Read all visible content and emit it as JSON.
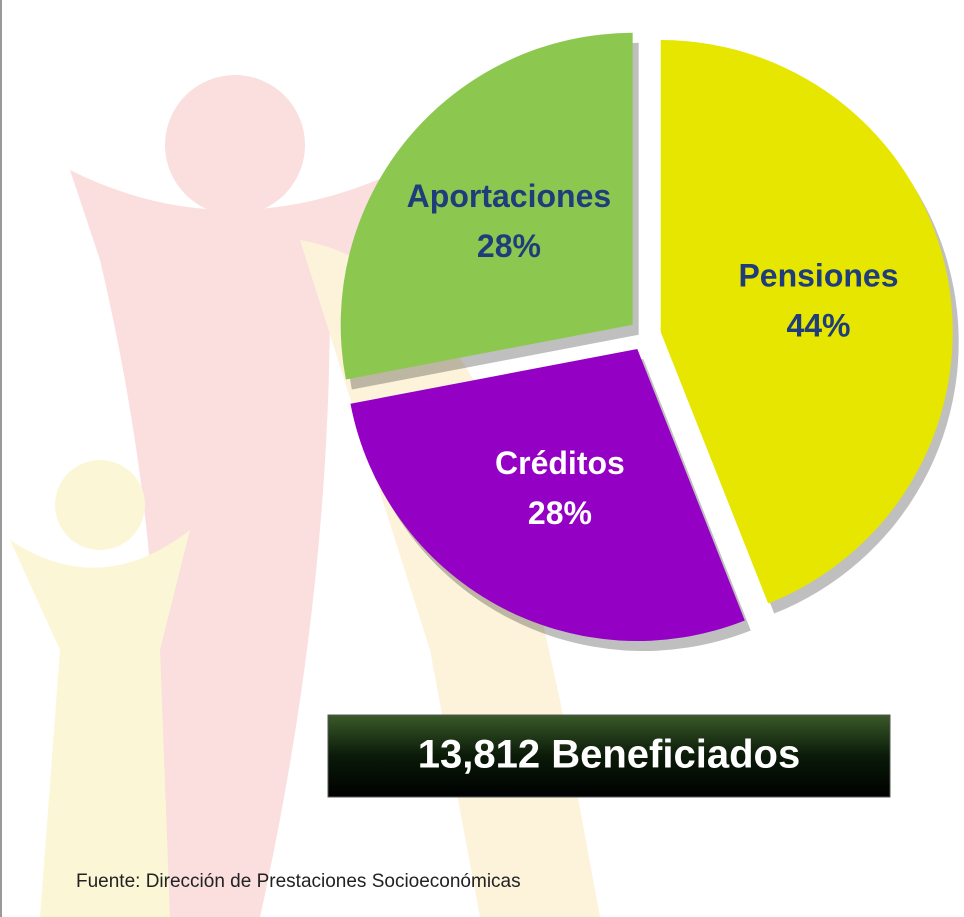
{
  "chart_data": {
    "type": "pie",
    "categories": [
      "Pensiones",
      "Créditos",
      "Aportaciones"
    ],
    "values": [
      44,
      28,
      28
    ],
    "value_labels": [
      "44%",
      "28%",
      "28%"
    ],
    "colors": [
      "#e6e600",
      "#9400c4",
      "#8cc850"
    ],
    "annotation": "13,812 Beneficiados",
    "source": "Fuente: Dirección de Prestaciones Socioeconómicas"
  }
}
